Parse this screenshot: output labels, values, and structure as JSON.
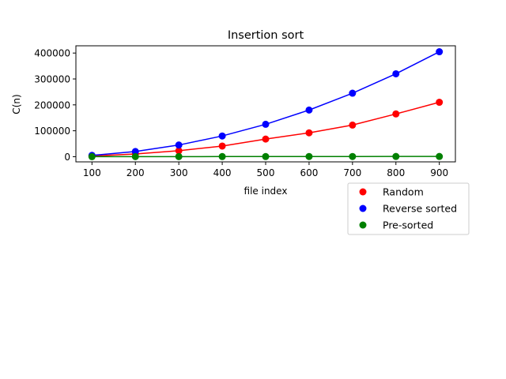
{
  "chart_data": {
    "type": "line",
    "title": "Insertion sort",
    "xlabel": "file index",
    "ylabel": "C(n)",
    "x": [
      100,
      200,
      300,
      400,
      500,
      600,
      700,
      800,
      900
    ],
    "xlim": [
      63,
      937
    ],
    "ylim": [
      -20000,
      428000
    ],
    "xticks": [
      100,
      200,
      300,
      400,
      500,
      600,
      700,
      800,
      900
    ],
    "xtick_labels": [
      "100",
      "200",
      "300",
      "400",
      "500",
      "600",
      "700",
      "800",
      "900"
    ],
    "yticks": [
      0,
      100000,
      200000,
      300000,
      400000
    ],
    "ytick_labels": [
      "0",
      "100000",
      "200000",
      "300000",
      "400000"
    ],
    "grid": false,
    "legend_position": "below-right",
    "series": [
      {
        "name": "Random",
        "color": "#ff0000",
        "values": [
          2600,
          10400,
          23000,
          41000,
          68000,
          92000,
          122000,
          165000,
          210000
        ]
      },
      {
        "name": "Reverse sorted",
        "color": "#0000ff",
        "values": [
          5000,
          20000,
          45000,
          80000,
          125000,
          180000,
          245000,
          320000,
          405000
        ]
      },
      {
        "name": "Pre-sorted",
        "color": "#008000",
        "values": [
          100,
          200,
          300,
          400,
          500,
          600,
          700,
          800,
          900
        ]
      }
    ]
  }
}
